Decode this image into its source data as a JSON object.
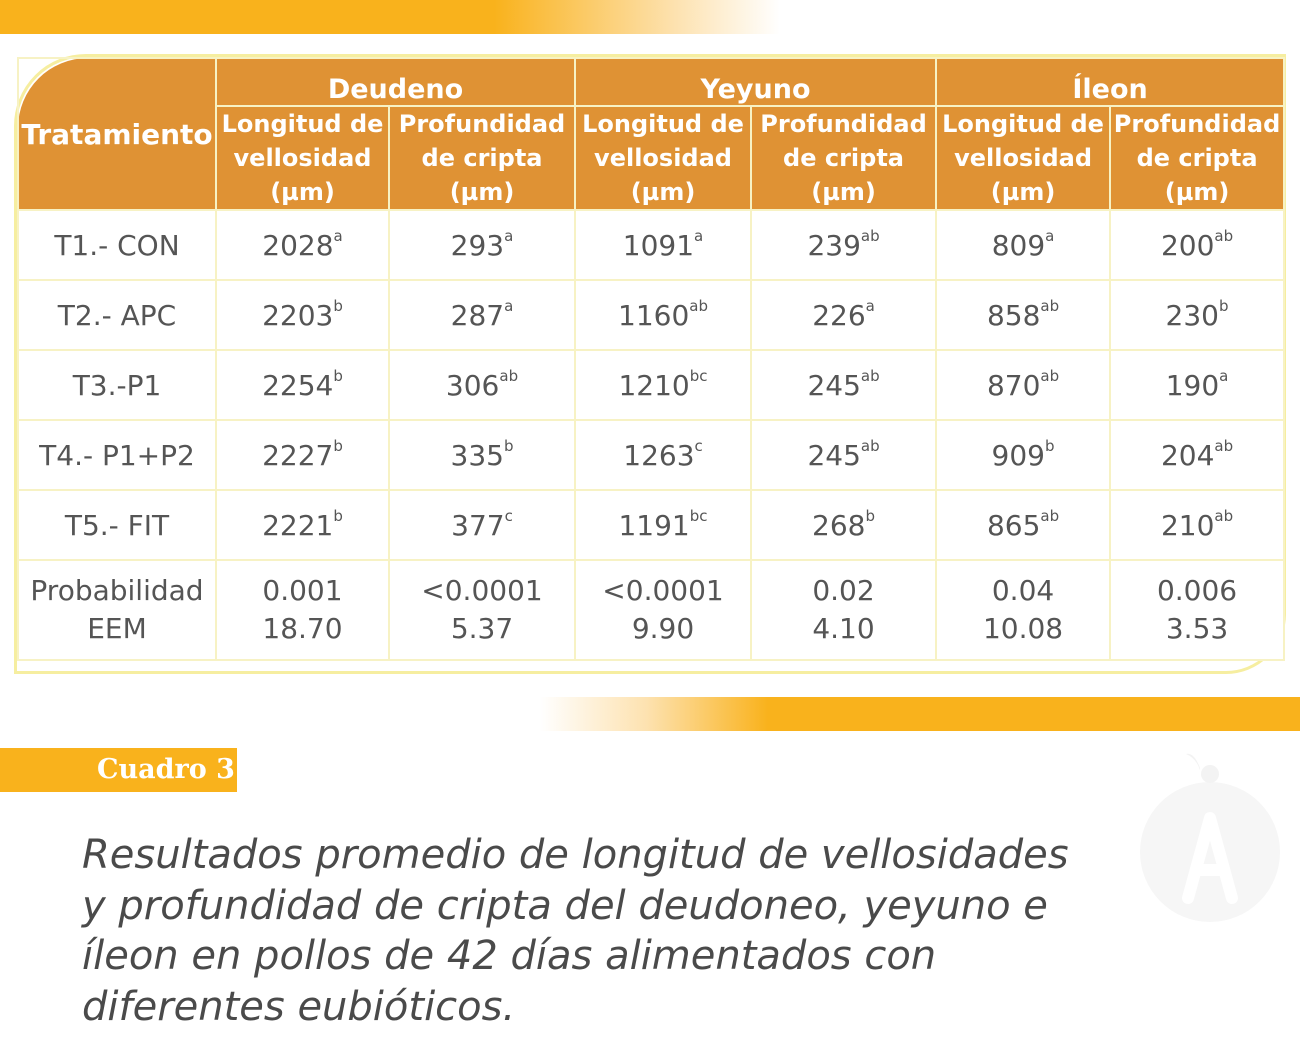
{
  "table": {
    "treatment_header": "Tratamiento",
    "groups": [
      {
        "label": "Deudeno",
        "sub": [
          {
            "line1": "Longitud de",
            "line2": "vellosidad",
            "line3": "(µm)"
          },
          {
            "line1": "Profundidad",
            "line2": "de cripta",
            "line3": "(µm)"
          }
        ]
      },
      {
        "label": "Yeyuno",
        "sub": [
          {
            "line1": "Longitud de",
            "line2": "vellosidad",
            "line3": "(µm)"
          },
          {
            "line1": "Profundidad",
            "line2": "de cripta",
            "line3": "(µm)"
          }
        ]
      },
      {
        "label": "Íleon",
        "sub": [
          {
            "line1": "Longitud de",
            "line2": "vellosidad",
            "line3": "(µm)"
          },
          {
            "line1": "Profundidad",
            "line2": "de cripta",
            "line3": "(µm)"
          }
        ]
      }
    ],
    "rows": [
      {
        "treatment": "T1.- CON",
        "cells": [
          {
            "value": "2028",
            "sup": "a"
          },
          {
            "value": "293",
            "sup": "a"
          },
          {
            "value": "1091",
            "sup": "a"
          },
          {
            "value": "239",
            "sup": "ab"
          },
          {
            "value": "809",
            "sup": "a"
          },
          {
            "value": "200",
            "sup": "ab"
          }
        ]
      },
      {
        "treatment": "T2.- APC",
        "cells": [
          {
            "value": "2203",
            "sup": "b"
          },
          {
            "value": "287",
            "sup": "a"
          },
          {
            "value": "1160",
            "sup": "ab"
          },
          {
            "value": "226",
            "sup": "a"
          },
          {
            "value": "858",
            "sup": "ab"
          },
          {
            "value": "230",
            "sup": "b"
          }
        ]
      },
      {
        "treatment": "T3.-P1",
        "cells": [
          {
            "value": "2254",
            "sup": "b"
          },
          {
            "value": "306",
            "sup": "ab"
          },
          {
            "value": "1210",
            "sup": "bc"
          },
          {
            "value": "245",
            "sup": "ab"
          },
          {
            "value": "870",
            "sup": "ab"
          },
          {
            "value": "190",
            "sup": "a"
          }
        ]
      },
      {
        "treatment": "T4.- P1+P2",
        "cells": [
          {
            "value": "2227",
            "sup": "b"
          },
          {
            "value": "335",
            "sup": "b"
          },
          {
            "value": "1263",
            "sup": "c"
          },
          {
            "value": "245",
            "sup": "ab"
          },
          {
            "value": "909",
            "sup": "b"
          },
          {
            "value": "204",
            "sup": "ab"
          }
        ]
      },
      {
        "treatment": "T5.- FIT",
        "cells": [
          {
            "value": "2221",
            "sup": "b"
          },
          {
            "value": "377",
            "sup": "c"
          },
          {
            "value": "1191",
            "sup": "bc"
          },
          {
            "value": "268",
            "sup": "b"
          },
          {
            "value": "865",
            "sup": "ab"
          },
          {
            "value": "210",
            "sup": "ab"
          }
        ]
      }
    ],
    "stats": {
      "label1": "Probabilidad",
      "label2": "EEM",
      "probabilidad": [
        "0.001",
        "<0.0001",
        "<0.0001",
        "0.02",
        "0.04",
        "0.006"
      ],
      "eem": [
        "18.70",
        "5.37",
        "9.90",
        "4.10",
        "10.08",
        "3.53"
      ]
    }
  },
  "label": "Cuadro 3",
  "caption": "Resultados promedio de longitud de vellosidades y profundidad de cripta del deudoneo, yeyuno e íleon en pollos de 42 días alimentados con diferentes eubióticos.",
  "colors": {
    "header_bg": "#df9234",
    "accent": "#f9b21c",
    "grid": "#f7f2c4",
    "text": "#555555"
  }
}
